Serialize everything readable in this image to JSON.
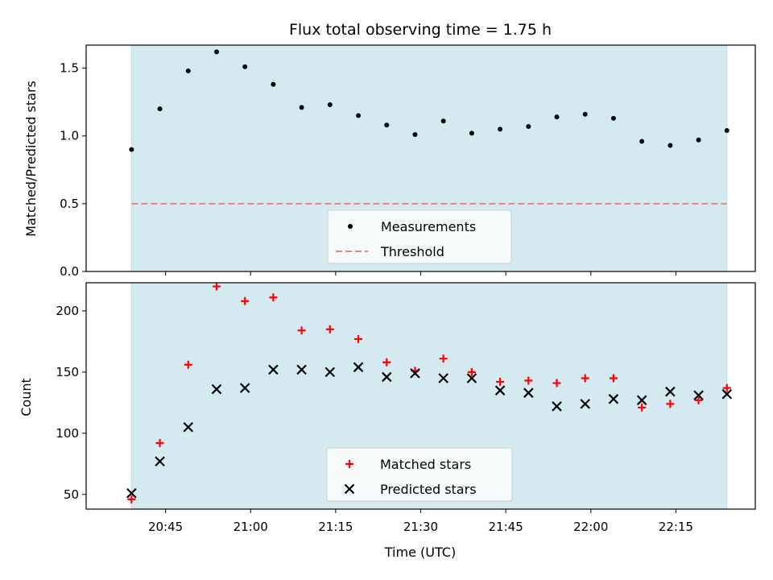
{
  "figure": {
    "title": "Flux total observing time = 1.75 h",
    "xlabel": "Time (UTC)",
    "colors": {
      "shade": "#d4eaf0",
      "threshold": "#f08080",
      "matched": "#ff0000",
      "predicted": "#000000",
      "measurement": "#000000"
    }
  },
  "chart_data": [
    {
      "type": "scatter",
      "ylabel": "Matched/Predicted stars",
      "ylim": [
        0,
        1.67
      ],
      "yticks": [
        0.0,
        0.5,
        1.0,
        1.5
      ],
      "ytick_labels": [
        "0.0",
        "0.5",
        "1.0",
        "1.5"
      ],
      "xlim": [
        "20:31",
        "22:29"
      ],
      "xticks": [
        "20:45",
        "21:00",
        "21:15",
        "21:30",
        "21:45",
        "22:00",
        "22:15"
      ],
      "shaded_span": [
        "20:39",
        "22:24"
      ],
      "legend": {
        "position": "lower-center",
        "entries": [
          "Measurements",
          "Threshold"
        ]
      },
      "series": [
        {
          "name": "Measurements",
          "marker": "dot",
          "x": [
            "20:39",
            "20:44",
            "20:49",
            "20:54",
            "20:59",
            "21:04",
            "21:09",
            "21:14",
            "21:19",
            "21:24",
            "21:29",
            "21:34",
            "21:39",
            "21:44",
            "21:49",
            "21:54",
            "21:59",
            "22:04",
            "22:09",
            "22:14",
            "22:19",
            "22:24"
          ],
          "y": [
            0.9,
            1.2,
            1.48,
            1.62,
            1.51,
            1.38,
            1.21,
            1.23,
            1.15,
            1.08,
            1.01,
            1.11,
            1.02,
            1.05,
            1.07,
            1.14,
            1.16,
            1.13,
            0.96,
            0.93,
            0.97,
            1.04
          ]
        },
        {
          "name": "Threshold",
          "marker": "dashed-line",
          "x": [
            "20:39",
            "22:24"
          ],
          "y": [
            0.5,
            0.5
          ]
        }
      ]
    },
    {
      "type": "scatter",
      "ylabel": "Count",
      "ylim": [
        38,
        223
      ],
      "yticks": [
        50,
        100,
        150,
        200
      ],
      "ytick_labels": [
        "50",
        "100",
        "150",
        "200"
      ],
      "xlim": [
        "20:31",
        "22:29"
      ],
      "xticks": [
        "20:45",
        "21:00",
        "21:15",
        "21:30",
        "21:45",
        "22:00",
        "22:15"
      ],
      "shaded_span": [
        "20:39",
        "22:24"
      ],
      "legend": {
        "position": "lower-center",
        "entries": [
          "Matched stars",
          "Predicted stars"
        ]
      },
      "series": [
        {
          "name": "Matched stars",
          "marker": "plus",
          "x": [
            "20:39",
            "20:44",
            "20:49",
            "20:54",
            "20:59",
            "21:04",
            "21:09",
            "21:14",
            "21:19",
            "21:24",
            "21:29",
            "21:34",
            "21:39",
            "21:44",
            "21:49",
            "21:54",
            "21:59",
            "22:04",
            "22:09",
            "22:14",
            "22:19",
            "22:24"
          ],
          "y": [
            46,
            92,
            156,
            220,
            208,
            211,
            184,
            185,
            177,
            158,
            151,
            161,
            150,
            142,
            143,
            141,
            145,
            145,
            121,
            124,
            127,
            137
          ]
        },
        {
          "name": "Predicted stars",
          "marker": "x",
          "x": [
            "20:39",
            "20:44",
            "20:49",
            "20:54",
            "20:59",
            "21:04",
            "21:09",
            "21:14",
            "21:19",
            "21:24",
            "21:29",
            "21:34",
            "21:39",
            "21:44",
            "21:49",
            "21:54",
            "21:59",
            "22:04",
            "22:09",
            "22:14",
            "22:19",
            "22:24"
          ],
          "y": [
            51,
            77,
            105,
            136,
            137,
            152,
            152,
            150,
            154,
            146,
            149,
            145,
            145,
            135,
            133,
            122,
            124,
            128,
            127,
            134,
            131,
            132
          ]
        }
      ]
    }
  ]
}
